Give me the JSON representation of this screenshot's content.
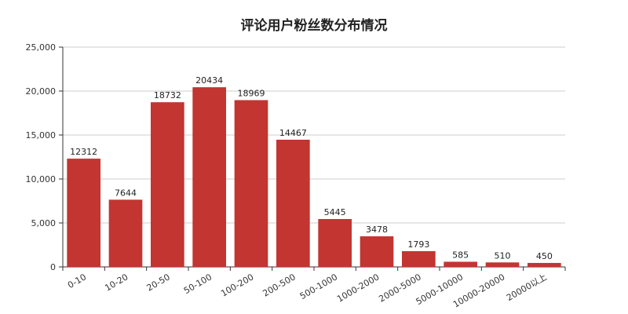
{
  "chart_data": {
    "type": "bar",
    "title": "评论用户粉丝数分布情况",
    "xlabel": "",
    "ylabel": "",
    "categories": [
      "0-10",
      "10-20",
      "20-50",
      "50-100",
      "100-200",
      "200-500",
      "500-1000",
      "1000-2000",
      "2000-5000",
      "5000-10000",
      "10000-20000",
      "20000以上"
    ],
    "values": [
      12312,
      7644,
      18732,
      20434,
      18969,
      14467,
      5445,
      3478,
      1793,
      585,
      510,
      450
    ],
    "ylim": [
      0,
      25000
    ],
    "yticks": [
      "0",
      "5,000",
      "10,000",
      "15,000",
      "20,000",
      "25,000"
    ],
    "grid": true,
    "legend": "none",
    "bar_color": "#c23531"
  }
}
